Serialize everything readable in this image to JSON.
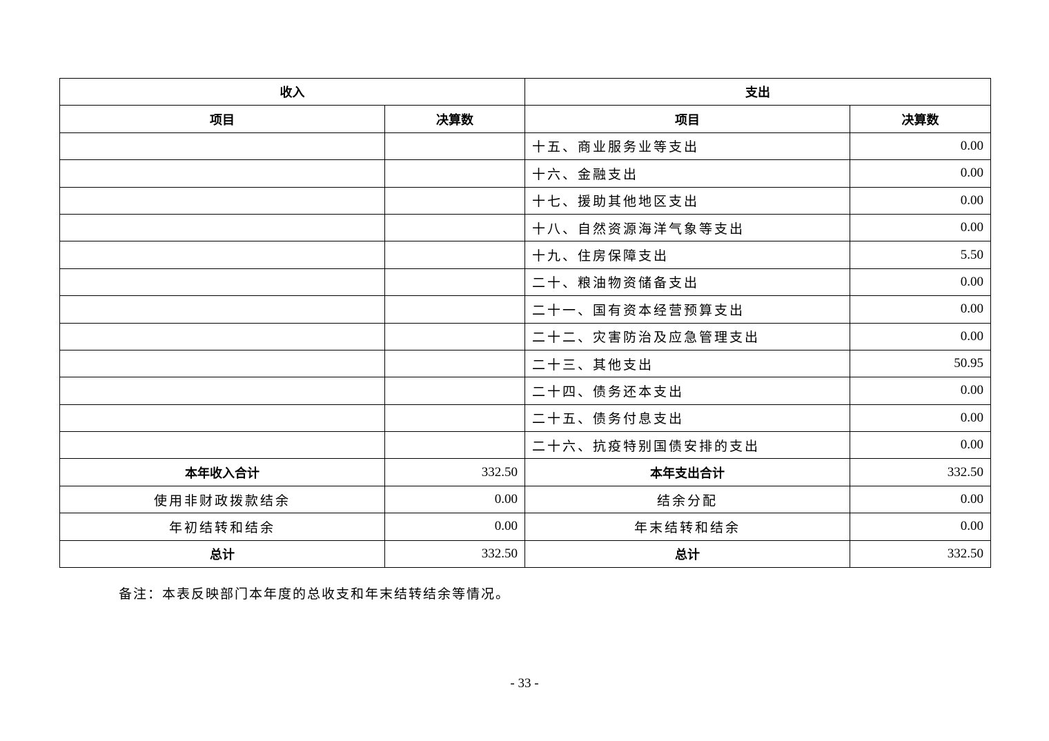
{
  "header": {
    "income": "收入",
    "expense": "支出",
    "item": "项目",
    "amount": "决算数"
  },
  "rows": [
    {
      "exp_item": "十五、商业服务业等支出",
      "exp_amount": "0.00"
    },
    {
      "exp_item": "十六、金融支出",
      "exp_amount": "0.00"
    },
    {
      "exp_item": "十七、援助其他地区支出",
      "exp_amount": "0.00"
    },
    {
      "exp_item": "十八、自然资源海洋气象等支出",
      "exp_amount": "0.00"
    },
    {
      "exp_item": "十九、住房保障支出",
      "exp_amount": "5.50"
    },
    {
      "exp_item": "二十、粮油物资储备支出",
      "exp_amount": "0.00"
    },
    {
      "exp_item": "二十一、国有资本经营预算支出",
      "exp_amount": "0.00"
    },
    {
      "exp_item": "二十二、灾害防治及应急管理支出",
      "exp_amount": "0.00"
    },
    {
      "exp_item": "二十三、其他支出",
      "exp_amount": "50.95"
    },
    {
      "exp_item": "二十四、债务还本支出",
      "exp_amount": "0.00"
    },
    {
      "exp_item": "二十五、债务付息支出",
      "exp_amount": "0.00"
    },
    {
      "exp_item": "二十六、抗疫特别国债安排的支出",
      "exp_amount": "0.00"
    }
  ],
  "summary": [
    {
      "inc_item": "本年收入合计",
      "inc_amount": "332.50",
      "exp_item": "本年支出合计",
      "exp_amount": "332.50",
      "bold": true
    },
    {
      "inc_item": "使用非财政拨款结余",
      "inc_amount": "0.00",
      "exp_item": "结余分配",
      "exp_amount": "0.00",
      "bold": false
    },
    {
      "inc_item": "年初结转和结余",
      "inc_amount": "0.00",
      "exp_item": "年末结转和结余",
      "exp_amount": "0.00",
      "bold": false
    },
    {
      "inc_item": "总计",
      "inc_amount": "332.50",
      "exp_item": "总计",
      "exp_amount": "332.50",
      "bold": true
    }
  ],
  "note": "备注：本表反映部门本年度的总收支和年末结转结余等情况。",
  "page_number": "- 33 -"
}
